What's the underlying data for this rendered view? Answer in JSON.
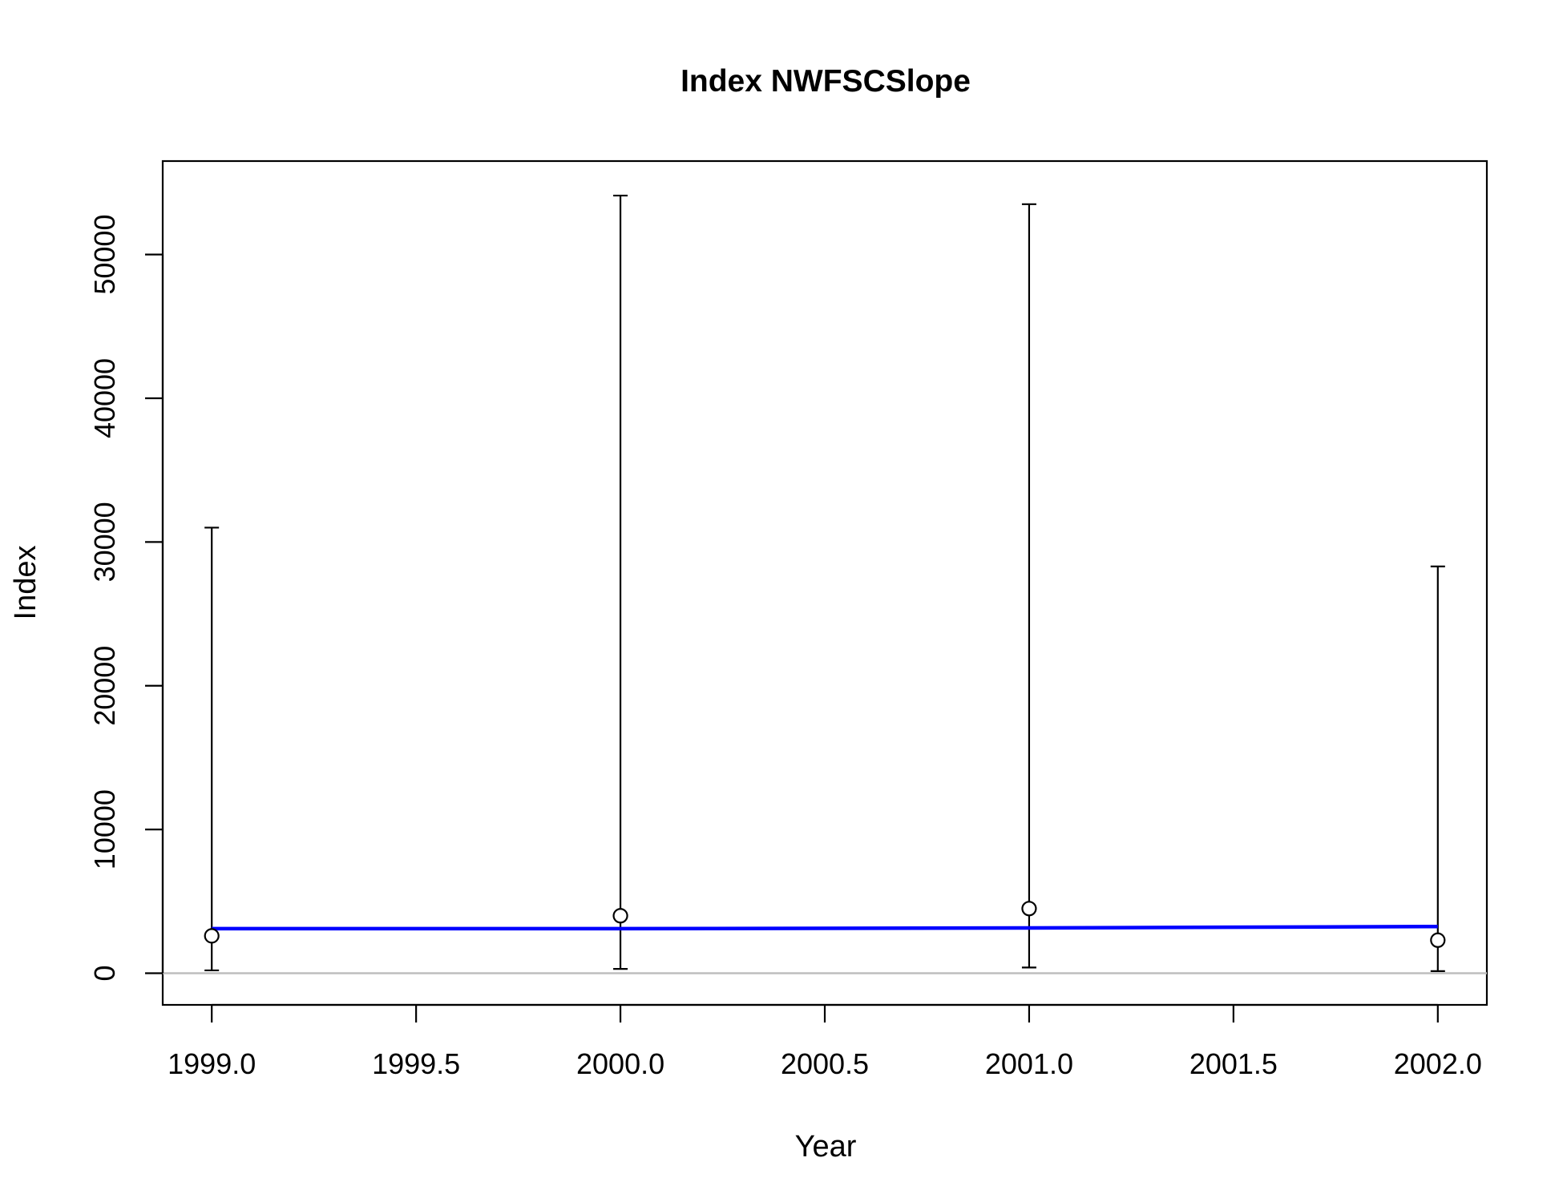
{
  "chart_data": {
    "type": "scatter",
    "title": "Index NWFSCSlope",
    "xlabel": "Year",
    "ylabel": "Index",
    "xlim": [
      1998.88,
      2002.12
    ],
    "ylim": [
      -2200,
      56500
    ],
    "x_ticks": [
      "1999.0",
      "1999.5",
      "2000.0",
      "2000.5",
      "2001.0",
      "2001.5",
      "2002.0"
    ],
    "y_ticks": [
      "0",
      "10000",
      "20000",
      "30000",
      "40000",
      "50000"
    ],
    "grid": false,
    "legend": "none",
    "series": [
      {
        "kind": "points-with-interval",
        "x": [
          1999,
          2000,
          2001,
          2002
        ],
        "values": [
          2600,
          4000,
          4500,
          2300
        ],
        "lower": [
          200,
          300,
          400,
          150
        ],
        "upper": [
          31000,
          54100,
          53500,
          28300
        ]
      },
      {
        "kind": "line",
        "x": [
          1999,
          2000,
          2001,
          2002
        ],
        "values": [
          3100,
          3100,
          3150,
          3250
        ]
      }
    ],
    "reference_line_y": 0,
    "colors": {
      "points": "#000000",
      "intervals": "#000000",
      "line": "#0000ff",
      "reference": "#bebebe",
      "axes": "#000000"
    }
  }
}
